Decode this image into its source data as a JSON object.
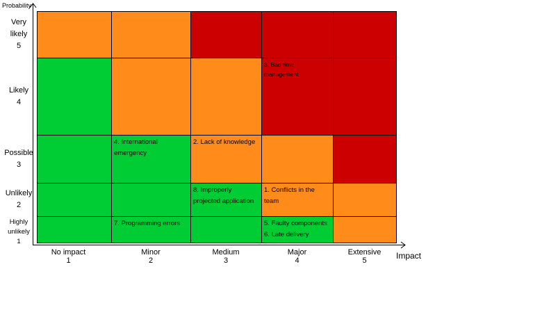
{
  "y_axis_title": "Probability",
  "x_axis_title": "Impact",
  "y_labels": [
    [
      "Very",
      "likely",
      "5"
    ],
    [
      "Likely",
      "4"
    ],
    [
      "Possible",
      "3"
    ],
    [
      "Unlikely",
      "2"
    ],
    [
      "Highly",
      "unlikely",
      "1"
    ]
  ],
  "x_labels": [
    [
      "No impact",
      "1"
    ],
    [
      "Minor",
      "2"
    ],
    [
      "Medium",
      "3"
    ],
    [
      "Major",
      "4"
    ],
    [
      "Extensive",
      "5"
    ]
  ],
  "colors": {
    "green": "#00cc33",
    "orange": "#ff8c1a",
    "red": "#cc0000"
  },
  "matrix": [
    [
      "orange",
      "orange",
      "red",
      "red",
      "red"
    ],
    [
      "green",
      "orange",
      "orange",
      "red",
      "red"
    ],
    [
      "green",
      "green",
      "orange",
      "orange",
      "red"
    ],
    [
      "green",
      "green",
      "green",
      "orange",
      "orange"
    ],
    [
      "green",
      "green",
      "green",
      "green",
      "orange"
    ]
  ],
  "risks": [
    {
      "probability": 4,
      "impact": 4,
      "text": "3. Bad time\nmanagement"
    },
    {
      "probability": 3,
      "impact": 2,
      "text": "4. International\nemergency"
    },
    {
      "probability": 3,
      "impact": 3,
      "text": "2. Lack of knowledge"
    },
    {
      "probability": 2,
      "impact": 3,
      "text": "8. Improperly\nprojected application"
    },
    {
      "probability": 2,
      "impact": 4,
      "text": "1. Conflicts in the team"
    },
    {
      "probability": 1,
      "impact": 2,
      "text": "7. Programming errors"
    },
    {
      "probability": 1,
      "impact": 4,
      "text": "5. Faulty components\n6. Late delivery"
    }
  ]
}
